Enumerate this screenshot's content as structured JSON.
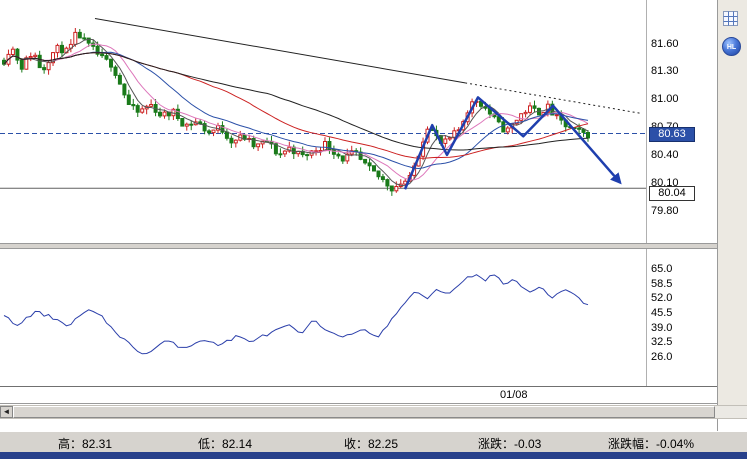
{
  "toolbar": {
    "icons": [
      {
        "name": "grid-icon"
      },
      {
        "name": "hl-sphere-icon"
      }
    ],
    "hl_label": "HL"
  },
  "price_axis": {
    "ticks": [
      "81.60",
      "81.30",
      "81.00",
      "80.70",
      "80.40",
      "80.10",
      "79.80"
    ],
    "current_tag": {
      "label": "80.63",
      "value": 80.63
    },
    "level_tag": {
      "label": "80.04",
      "value": 80.04
    }
  },
  "indicator_axis": {
    "ticks": [
      "65.0",
      "58.5",
      "52.0",
      "45.5",
      "39.0",
      "32.5",
      "26.0"
    ]
  },
  "x_axis": {
    "labels": [
      {
        "text": "01/08",
        "pos": 0.797
      }
    ]
  },
  "scrollbar": {
    "left_glyph": "◄"
  },
  "status_bar": {
    "items": [
      {
        "text": "高：82.31"
      },
      {
        "text": "低：82.14"
      },
      {
        "text": "收：82.25"
      },
      {
        "text": "涨跌：-0.03"
      },
      {
        "text": "涨跌幅：-0.04%"
      }
    ]
  },
  "chart_data": {
    "type": "candlestick",
    "price": {
      "ylim": [
        79.45,
        82.07
      ],
      "candle_count": 132,
      "colors": {
        "up": "#cc2222",
        "down": "#1a7a1a",
        "dashed_line": "#2b50a8",
        "level_line": "#606060"
      },
      "path": [
        [
          0.0,
          81.42
        ],
        [
          0.012,
          81.58
        ],
        [
          0.03,
          81.35
        ],
        [
          0.05,
          81.52
        ],
        [
          0.065,
          81.3
        ],
        [
          0.08,
          81.48
        ],
        [
          0.095,
          81.56
        ],
        [
          0.11,
          81.5
        ],
        [
          0.125,
          81.72
        ],
        [
          0.14,
          81.6
        ],
        [
          0.155,
          81.52
        ],
        [
          0.17,
          81.42
        ],
        [
          0.185,
          81.38
        ],
        [
          0.2,
          81.15
        ],
        [
          0.215,
          80.92
        ],
        [
          0.23,
          80.85
        ],
        [
          0.25,
          80.95
        ],
        [
          0.27,
          80.82
        ],
        [
          0.29,
          80.86
        ],
        [
          0.31,
          80.72
        ],
        [
          0.33,
          80.76
        ],
        [
          0.35,
          80.64
        ],
        [
          0.37,
          80.7
        ],
        [
          0.39,
          80.55
        ],
        [
          0.41,
          80.6
        ],
        [
          0.43,
          80.48
        ],
        [
          0.45,
          80.55
        ],
        [
          0.47,
          80.4
        ],
        [
          0.49,
          80.48
        ],
        [
          0.51,
          80.38
        ],
        [
          0.53,
          80.44
        ],
        [
          0.55,
          80.52
        ],
        [
          0.565,
          80.44
        ],
        [
          0.58,
          80.36
        ],
        [
          0.6,
          80.42
        ],
        [
          0.615,
          80.3
        ],
        [
          0.63,
          80.22
        ],
        [
          0.65,
          80.12
        ],
        [
          0.665,
          80.04
        ],
        [
          0.68,
          80.1
        ],
        [
          0.695,
          80.14
        ],
        [
          0.71,
          80.42
        ],
        [
          0.725,
          80.72
        ],
        [
          0.737,
          80.62
        ],
        [
          0.75,
          80.5
        ],
        [
          0.765,
          80.58
        ],
        [
          0.78,
          80.68
        ],
        [
          0.793,
          80.88
        ],
        [
          0.807,
          81.0
        ],
        [
          0.82,
          80.94
        ],
        [
          0.835,
          80.82
        ],
        [
          0.85,
          80.7
        ],
        [
          0.862,
          80.66
        ],
        [
          0.875,
          80.76
        ],
        [
          0.888,
          80.86
        ],
        [
          0.9,
          80.9
        ],
        [
          0.915,
          80.86
        ],
        [
          0.93,
          80.92
        ],
        [
          0.945,
          80.8
        ],
        [
          0.96,
          80.72
        ],
        [
          0.975,
          80.66
        ],
        [
          1.0,
          80.62
        ]
      ],
      "ma": [
        {
          "window": 5,
          "color": "#555555"
        },
        {
          "window": 10,
          "color": "#dd77bb"
        },
        {
          "window": 20,
          "color": "#2b50a8"
        },
        {
          "window": 40,
          "color": "#cc2222"
        },
        {
          "window": 60,
          "color": "#222222"
        }
      ],
      "trendline": {
        "points": [
          [
            0.147,
            81.87
          ],
          [
            0.99,
            80.85
          ]
        ],
        "dash_from": 0.72,
        "color": "#222222"
      },
      "zigzag": {
        "color": "#1f3fae",
        "points": [
          [
            0.627,
            80.03
          ],
          [
            0.669,
            80.72
          ],
          [
            0.692,
            80.4
          ],
          [
            0.74,
            81.02
          ],
          [
            0.81,
            80.6
          ],
          [
            0.856,
            80.93
          ],
          [
            0.96,
            80.1
          ]
        ]
      },
      "levels": {
        "dashed": 80.63,
        "solid": 80.04
      }
    },
    "indicator": {
      "type": "line",
      "ylim": [
        13.0,
        74.0
      ],
      "color": "#2b3faa",
      "path": [
        [
          0.0,
          44
        ],
        [
          0.022,
          40
        ],
        [
          0.055,
          46
        ],
        [
          0.088,
          43
        ],
        [
          0.11,
          40
        ],
        [
          0.143,
          47
        ],
        [
          0.166,
          44
        ],
        [
          0.188,
          38
        ],
        [
          0.221,
          30
        ],
        [
          0.243,
          27
        ],
        [
          0.276,
          33
        ],
        [
          0.309,
          30
        ],
        [
          0.342,
          34
        ],
        [
          0.365,
          31
        ],
        [
          0.398,
          35
        ],
        [
          0.42,
          33
        ],
        [
          0.453,
          36
        ],
        [
          0.486,
          40
        ],
        [
          0.508,
          36
        ],
        [
          0.53,
          42
        ],
        [
          0.552,
          38
        ],
        [
          0.586,
          35
        ],
        [
          0.619,
          38
        ],
        [
          0.641,
          35
        ],
        [
          0.663,
          42
        ],
        [
          0.685,
          50
        ],
        [
          0.707,
          55
        ],
        [
          0.724,
          52
        ],
        [
          0.74,
          56
        ],
        [
          0.762,
          54
        ],
        [
          0.785,
          60
        ],
        [
          0.807,
          63
        ],
        [
          0.823,
          60
        ],
        [
          0.84,
          63
        ],
        [
          0.856,
          58
        ],
        [
          0.873,
          61
        ],
        [
          0.895,
          55
        ],
        [
          0.917,
          57
        ],
        [
          0.939,
          52
        ],
        [
          0.961,
          56
        ],
        [
          0.978,
          53
        ],
        [
          1.0,
          49
        ]
      ]
    }
  }
}
